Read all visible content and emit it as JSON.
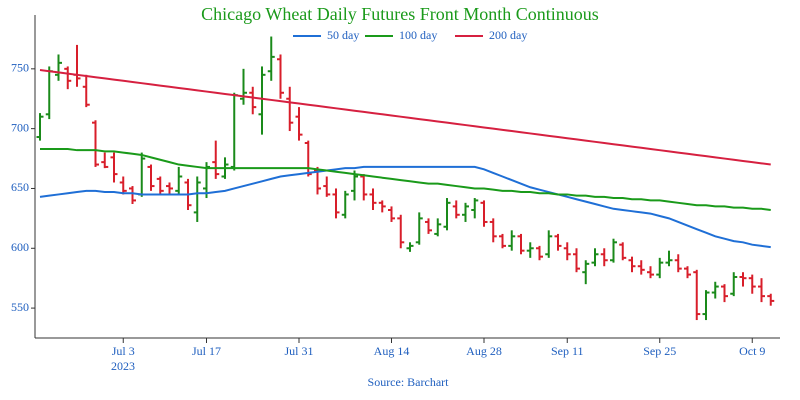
{
  "chart_data": {
    "type": "ohlc",
    "title": "Chicago Wheat Daily Futures Front Month Continuous",
    "source": "Source: Barchart",
    "year_label": "2023",
    "categories": [
      null,
      null,
      null,
      null,
      null,
      null,
      null,
      null,
      null,
      "Jul 3",
      null,
      null,
      null,
      null,
      null,
      null,
      null,
      null,
      "Jul 17",
      null,
      null,
      null,
      null,
      null,
      null,
      null,
      null,
      null,
      "Jul 31",
      null,
      null,
      null,
      null,
      null,
      null,
      null,
      null,
      null,
      "Aug 14",
      null,
      null,
      null,
      null,
      null,
      null,
      null,
      null,
      null,
      "Aug 28",
      null,
      null,
      null,
      null,
      null,
      null,
      null,
      null,
      "Sep 11",
      null,
      null,
      null,
      null,
      null,
      null,
      null,
      null,
      null,
      "Sep 25",
      null,
      null,
      null,
      null,
      null,
      null,
      null,
      null,
      null,
      "Oct 9",
      null,
      null
    ],
    "open": [
      693,
      712,
      745,
      750,
      745,
      735,
      705,
      672,
      676,
      655,
      650,
      645,
      668,
      658,
      652,
      648,
      655,
      630,
      650,
      672,
      660,
      668,
      725,
      730,
      712,
      748,
      758,
      725,
      710,
      688,
      665,
      652,
      645,
      628,
      648,
      660,
      645,
      638,
      632,
      625,
      600,
      605,
      622,
      612,
      618,
      635,
      628,
      632,
      638,
      622,
      610,
      602,
      610,
      598,
      600,
      595,
      610,
      600,
      595,
      580,
      588,
      595,
      590,
      603,
      590,
      585,
      580,
      578,
      588,
      590,
      583,
      580,
      545,
      563,
      568,
      562,
      576,
      575,
      568,
      560
    ],
    "high": [
      713,
      752,
      762,
      752,
      770,
      745,
      707,
      680,
      680,
      660,
      652,
      680,
      670,
      660,
      655,
      668,
      658,
      660,
      672,
      690,
      676,
      730,
      750,
      735,
      752,
      777,
      762,
      735,
      718,
      690,
      668,
      660,
      650,
      648,
      665,
      662,
      650,
      640,
      635,
      628,
      605,
      630,
      625,
      625,
      642,
      640,
      638,
      642,
      640,
      625,
      612,
      615,
      612,
      605,
      602,
      615,
      612,
      605,
      600,
      590,
      600,
      600,
      608,
      605,
      593,
      590,
      585,
      592,
      598,
      595,
      585,
      582,
      565,
      572,
      570,
      580,
      580,
      578,
      575,
      562
    ],
    "low": [
      690,
      708,
      740,
      733,
      735,
      718,
      668,
      667,
      655,
      645,
      637,
      643,
      648,
      645,
      645,
      645,
      632,
      622,
      642,
      658,
      658,
      665,
      720,
      712,
      695,
      740,
      725,
      698,
      690,
      660,
      645,
      643,
      625,
      625,
      640,
      640,
      632,
      630,
      622,
      600,
      597,
      603,
      612,
      610,
      615,
      625,
      622,
      625,
      618,
      605,
      600,
      598,
      595,
      592,
      590,
      592,
      598,
      590,
      580,
      570,
      585,
      585,
      588,
      590,
      580,
      578,
      575,
      575,
      585,
      580,
      575,
      540,
      540,
      558,
      555,
      560,
      568,
      562,
      555,
      552
    ],
    "close": [
      710,
      748,
      755,
      740,
      742,
      720,
      670,
      668,
      662,
      648,
      640,
      675,
      652,
      648,
      650,
      660,
      636,
      655,
      668,
      662,
      670,
      728,
      730,
      718,
      745,
      760,
      730,
      705,
      695,
      662,
      650,
      645,
      630,
      645,
      660,
      645,
      638,
      635,
      625,
      605,
      602,
      625,
      615,
      620,
      638,
      628,
      635,
      640,
      622,
      610,
      602,
      610,
      598,
      600,
      593,
      610,
      602,
      595,
      583,
      587,
      595,
      590,
      605,
      592,
      585,
      582,
      578,
      588,
      590,
      583,
      578,
      545,
      563,
      568,
      560,
      576,
      575,
      568,
      560,
      556
    ],
    "up_color": "#1a8a1a",
    "down_color": "#d81e2a",
    "series": [
      {
        "name": "50 day",
        "color": "#1f6fd6",
        "values": [
          643,
          644,
          645,
          646,
          647,
          648,
          648,
          647,
          647,
          646,
          646,
          645,
          645,
          645,
          645,
          645,
          645,
          646,
          646,
          647,
          648,
          650,
          652,
          654,
          656,
          658,
          660,
          661,
          662,
          663,
          664,
          665,
          666,
          667,
          667,
          668,
          668,
          668,
          668,
          668,
          668,
          668,
          668,
          668,
          668,
          668,
          668,
          668,
          666,
          663,
          660,
          657,
          654,
          651,
          649,
          647,
          645,
          643,
          641,
          639,
          637,
          635,
          633,
          632,
          631,
          630,
          629,
          627,
          625,
          622,
          619,
          616,
          613,
          610,
          608,
          606,
          605,
          603,
          602,
          601
        ]
      },
      {
        "name": "100 day",
        "color": "#1a9a1a",
        "values": [
          683,
          683,
          683,
          683,
          682,
          682,
          682,
          681,
          681,
          680,
          679,
          678,
          676,
          674,
          672,
          670,
          669,
          668,
          667,
          667,
          667,
          667,
          667,
          667,
          667,
          667,
          667,
          667,
          667,
          667,
          666,
          665,
          664,
          663,
          662,
          661,
          660,
          659,
          658,
          657,
          656,
          655,
          654,
          654,
          653,
          652,
          651,
          650,
          650,
          649,
          648,
          648,
          647,
          647,
          646,
          646,
          645,
          645,
          644,
          644,
          643,
          643,
          642,
          642,
          641,
          641,
          640,
          640,
          639,
          638,
          637,
          636,
          636,
          635,
          635,
          634,
          634,
          633,
          633,
          632
        ]
      },
      {
        "name": "200 day",
        "color": "#d62040",
        "values": [
          749,
          748,
          747,
          746,
          745,
          744,
          743,
          742,
          741,
          740,
          739,
          738,
          737,
          736,
          735,
          734,
          733,
          732,
          731,
          730,
          729,
          728,
          727,
          726,
          725,
          724,
          723,
          722,
          721,
          720,
          719,
          718,
          717,
          716,
          715,
          714,
          713,
          712,
          711,
          710,
          709,
          708,
          707,
          706,
          705,
          704,
          703,
          702,
          701,
          700,
          699,
          698,
          697,
          696,
          695,
          694,
          693,
          692,
          691,
          690,
          689,
          688,
          687,
          686,
          685,
          684,
          683,
          682,
          681,
          680,
          679,
          678,
          677,
          676,
          675,
          674,
          673,
          672,
          671,
          670
        ]
      }
    ],
    "ylim": [
      525,
      795
    ],
    "yticks": [
      550,
      600,
      650,
      700,
      750
    ],
    "legend": "top"
  }
}
